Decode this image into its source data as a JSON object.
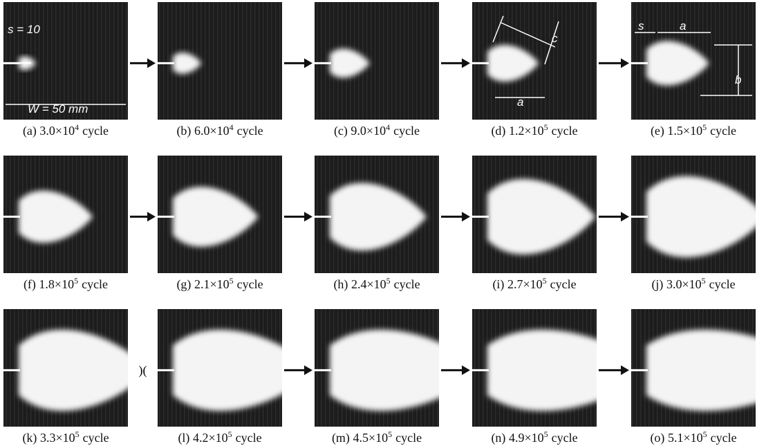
{
  "panels": [
    {
      "label": "(a)",
      "coefficient": "3.0×10",
      "exponent": "4",
      "unit": "cycle",
      "annotations": [
        "s = 10",
        "W = 50 mm"
      ]
    },
    {
      "label": "(b)",
      "coefficient": "6.0×10",
      "exponent": "4",
      "unit": "cycle"
    },
    {
      "label": "(c)",
      "coefficient": "9.0×10",
      "exponent": "4",
      "unit": "cycle"
    },
    {
      "label": "(d)",
      "coefficient": "1.2×10",
      "exponent": "5",
      "unit": "cycle",
      "annotations": [
        "c",
        "a"
      ]
    },
    {
      "label": "(e)",
      "coefficient": "1.5×10",
      "exponent": "5",
      "unit": "cycle",
      "annotations": [
        "s",
        "a",
        "b"
      ]
    },
    {
      "label": "(f)",
      "coefficient": "1.8×10",
      "exponent": "5",
      "unit": "cycle"
    },
    {
      "label": "(g)",
      "coefficient": "2.1×10",
      "exponent": "5",
      "unit": "cycle"
    },
    {
      "label": "(h)",
      "coefficient": "2.4×10",
      "exponent": "5",
      "unit": "cycle"
    },
    {
      "label": "(i)",
      "coefficient": "2.7×10",
      "exponent": "5",
      "unit": "cycle"
    },
    {
      "label": "(j)",
      "coefficient": "3.0×10",
      "exponent": "5",
      "unit": "cycle"
    },
    {
      "label": "(k)",
      "coefficient": "3.3×10",
      "exponent": "5",
      "unit": "cycle"
    },
    {
      "label": "(l)",
      "coefficient": "4.2×10",
      "exponent": "5",
      "unit": "cycle"
    },
    {
      "label": "(m)",
      "coefficient": "4.5×10",
      "exponent": "5",
      "unit": "cycle"
    },
    {
      "label": "(n)",
      "coefficient": "4.9×10",
      "exponent": "5",
      "unit": "cycle"
    },
    {
      "label": "(o)",
      "coefficient": "5.1×10",
      "exponent": "5",
      "unit": "cycle"
    }
  ]
}
